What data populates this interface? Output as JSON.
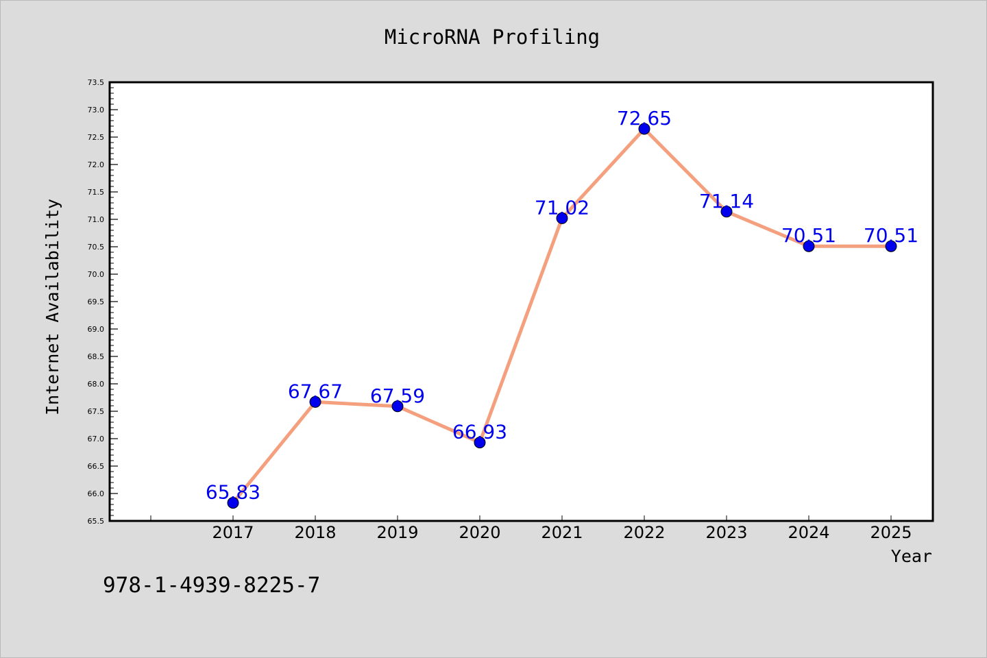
{
  "chart_data": {
    "type": "line",
    "title": "MicroRNA Profiling",
    "xlabel": "Year",
    "ylabel": "Internet Availability",
    "categories": [
      "2017",
      "2018",
      "2019",
      "2020",
      "2021",
      "2022",
      "2023",
      "2024",
      "2025"
    ],
    "series": [
      {
        "values": [
          65.83,
          67.67,
          67.59,
          66.93,
          71.02,
          72.65,
          71.14,
          70.51,
          70.51
        ],
        "data_labels": [
          "65.83",
          "67.67",
          "67.59",
          "66.93",
          "71.02",
          "72.65",
          "71.14",
          "70.51",
          "70.51"
        ]
      }
    ],
    "ylim": [
      65.5,
      73.5
    ],
    "y_ticks": [
      "65.5",
      "66.0",
      "66.5",
      "67.0",
      "67.5",
      "68.0",
      "68.5",
      "69.0",
      "69.5",
      "70.0",
      "70.5",
      "71.0",
      "71.5",
      "72.0",
      "72.5",
      "73.0",
      "73.5"
    ],
    "grid": false,
    "legend": "none",
    "colors": {
      "line": "#f4a07e",
      "marker": "#0000ee",
      "data_label": "#0000ee",
      "plot_background": "#ffffff",
      "page_background": "#dcdcdc"
    }
  },
  "footer_text": "978-1-4939-8225-7"
}
